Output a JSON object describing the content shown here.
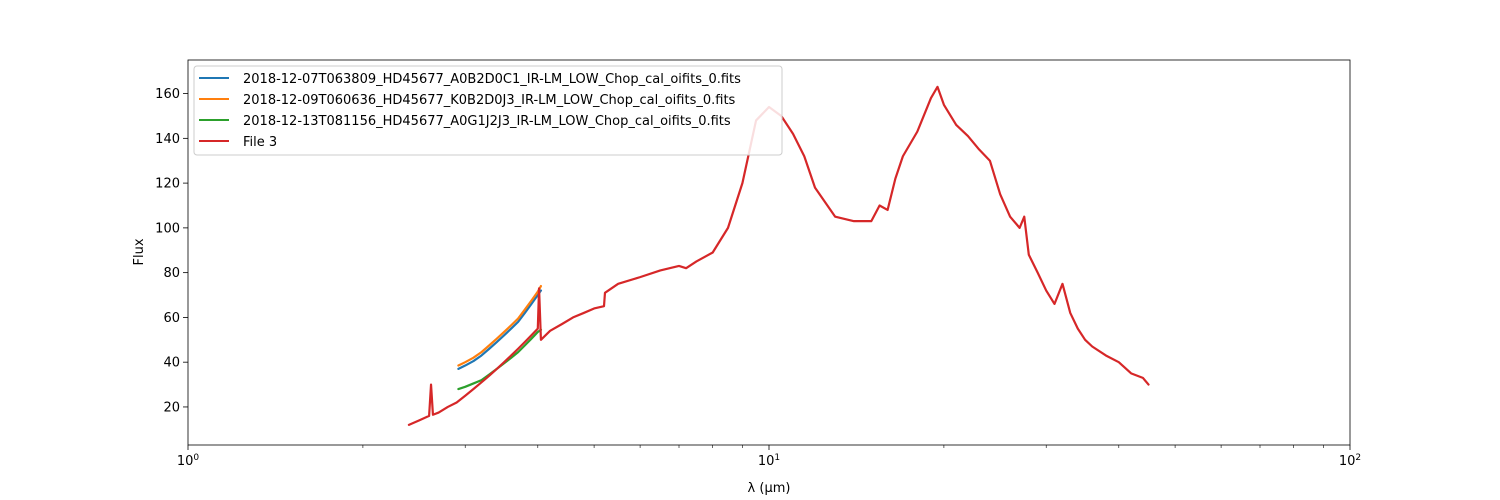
{
  "chart_data": {
    "type": "line",
    "xlabel": "λ (μm)",
    "ylabel": "Flux",
    "xscale": "log",
    "xlim": [
      1,
      100
    ],
    "ylim": [
      3,
      175
    ],
    "x_ticks": [
      {
        "value": 1,
        "base": "10",
        "exp": "0"
      },
      {
        "value": 10,
        "base": "10",
        "exp": "1"
      },
      {
        "value": 100,
        "base": "10",
        "exp": "2"
      }
    ],
    "y_ticks": [
      20,
      40,
      60,
      80,
      100,
      120,
      140,
      160
    ],
    "grid": false,
    "legend_position": "top-left",
    "series": [
      {
        "name": "2018-12-07T063809_HD45677_A0B2D0C1_IR-LM_LOW_Chop_cal_oifits_0.fits",
        "color": "#1f77b4",
        "x": [
          2.92,
          3.0,
          3.1,
          3.2,
          3.3,
          3.4,
          3.5,
          3.6,
          3.7,
          3.8,
          3.9,
          4.0,
          4.05
        ],
        "y": [
          37,
          38.5,
          40.5,
          43,
          46,
          49,
          52,
          55,
          58,
          62,
          66,
          70,
          72
        ]
      },
      {
        "name": "2018-12-09T060636_HD45677_K0B2D0J3_IR-LM_LOW_Chop_cal_oifits_0.fits",
        "color": "#ff7f0e",
        "x": [
          2.92,
          3.0,
          3.1,
          3.2,
          3.3,
          3.4,
          3.5,
          3.6,
          3.7,
          3.8,
          3.9,
          4.0,
          4.05
        ],
        "y": [
          38.5,
          40,
          42,
          44.5,
          47.5,
          50.5,
          53.5,
          56.5,
          59.5,
          63.5,
          67.5,
          71.5,
          74
        ]
      },
      {
        "name": "2018-12-13T081156_HD45677_A0G1J2J3_IR-LM_LOW_Chop_cal_oifits_0.fits",
        "color": "#2ca02c",
        "x": [
          2.92,
          3.0,
          3.1,
          3.2,
          3.3,
          3.4,
          3.5,
          3.6,
          3.7,
          3.8,
          3.9,
          4.0,
          4.05
        ],
        "y": [
          28,
          29,
          30.5,
          32,
          34.5,
          37,
          39.5,
          42,
          44.5,
          47.5,
          50.5,
          53.5,
          54.5
        ]
      },
      {
        "name": "File 3",
        "color": "#d62728",
        "x": [
          2.4,
          2.5,
          2.6,
          2.62,
          2.64,
          2.7,
          2.8,
          2.9,
          3.0,
          3.1,
          3.2,
          3.3,
          3.4,
          3.5,
          3.6,
          3.7,
          3.8,
          3.9,
          4.0,
          4.02,
          4.05,
          4.2,
          4.4,
          4.6,
          4.8,
          5.0,
          5.2,
          5.22,
          5.5,
          6.0,
          6.5,
          7.0,
          7.2,
          7.5,
          8.0,
          8.5,
          9.0,
          9.5,
          10.0,
          10.5,
          11.0,
          11.5,
          12.0,
          13.0,
          14.0,
          15.0,
          15.5,
          16.0,
          16.5,
          17.0,
          18.0,
          19.0,
          19.5,
          20.0,
          21.0,
          22.0,
          23.0,
          24.0,
          25.0,
          26.0,
          27.0,
          27.5,
          28.0,
          29.0,
          30.0,
          31.0,
          32.0,
          33.0,
          34.0,
          35.0,
          36.0,
          38.0,
          40.0,
          42.0,
          44.0,
          45.0
        ],
        "y": [
          12,
          14,
          16,
          30,
          16.5,
          17.5,
          20,
          22,
          25,
          28,
          31,
          34,
          37,
          40,
          43,
          46,
          49,
          52,
          55,
          73,
          50,
          54,
          57,
          60,
          62,
          64,
          65,
          71,
          75,
          78,
          81,
          83,
          82,
          85,
          89,
          100,
          120,
          148,
          154,
          150,
          142,
          132,
          118,
          105,
          103,
          103,
          110,
          108,
          122,
          132,
          143,
          158,
          163,
          155,
          146,
          141,
          135,
          130,
          115,
          105,
          100,
          105,
          88,
          80,
          72,
          66,
          75,
          62,
          55,
          50,
          47,
          43,
          40,
          35,
          33,
          30
        ]
      }
    ]
  }
}
